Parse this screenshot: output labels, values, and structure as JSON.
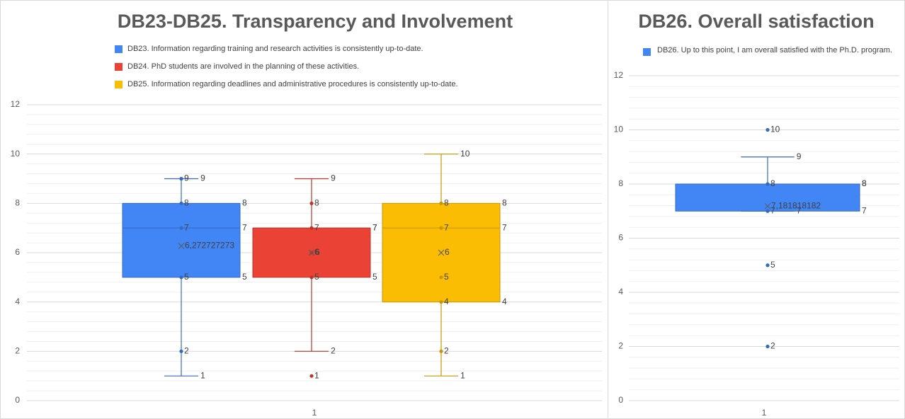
{
  "chart_data": [
    {
      "type": "box",
      "title": "DB23-DB25. Transparency and Involvement",
      "categories": [
        "1"
      ],
      "ylim": [
        0,
        12
      ],
      "yticks": [
        0,
        2,
        4,
        6,
        8,
        10,
        12
      ],
      "grid": true,
      "minor_grid": true,
      "legend": "top",
      "series": [
        {
          "name": "DB23. Information regarding training and research activities is consistently up-to-date.",
          "color": "#4285f4",
          "min": 1,
          "q1": 5,
          "median": 7,
          "q3": 8,
          "max": 9,
          "mean": 6.272727273,
          "mean_label": "6,272727273",
          "points": [
            9,
            8,
            7,
            5,
            2
          ]
        },
        {
          "name": "DB24. PhD students are involved in the planning of these activities.",
          "color": "#ea4335",
          "min": 2,
          "q1": 5,
          "median": 7,
          "q3": 7,
          "max": 9,
          "mean": 6,
          "points": [
            8,
            7,
            6,
            5,
            1
          ]
        },
        {
          "name": "DB25. Information regarding deadlines and administrative procedures is consistently up-to-date.",
          "color": "#fbbc04",
          "min": 1,
          "q1": 4,
          "median": 7,
          "q3": 8,
          "max": 10,
          "mean": 6,
          "points": [
            8,
            7,
            5,
            4,
            2
          ]
        }
      ]
    },
    {
      "type": "box",
      "title": "DB26. Overall satisfaction",
      "categories": [
        "1"
      ],
      "ylim": [
        0,
        12
      ],
      "yticks": [
        0,
        2,
        4,
        6,
        8,
        10,
        12
      ],
      "grid": true,
      "minor_grid": true,
      "legend": "top",
      "series": [
        {
          "name": "DB26. Up to this point, I am overall satisfied with the Ph.D. program.",
          "color": "#4285f4",
          "min": 7,
          "q1": 7,
          "median": 8,
          "q3": 8,
          "max": 9,
          "mean": 7.181818182,
          "mean_label": "7,181818182",
          "points": [
            10,
            8,
            7,
            5,
            2
          ]
        }
      ]
    }
  ]
}
